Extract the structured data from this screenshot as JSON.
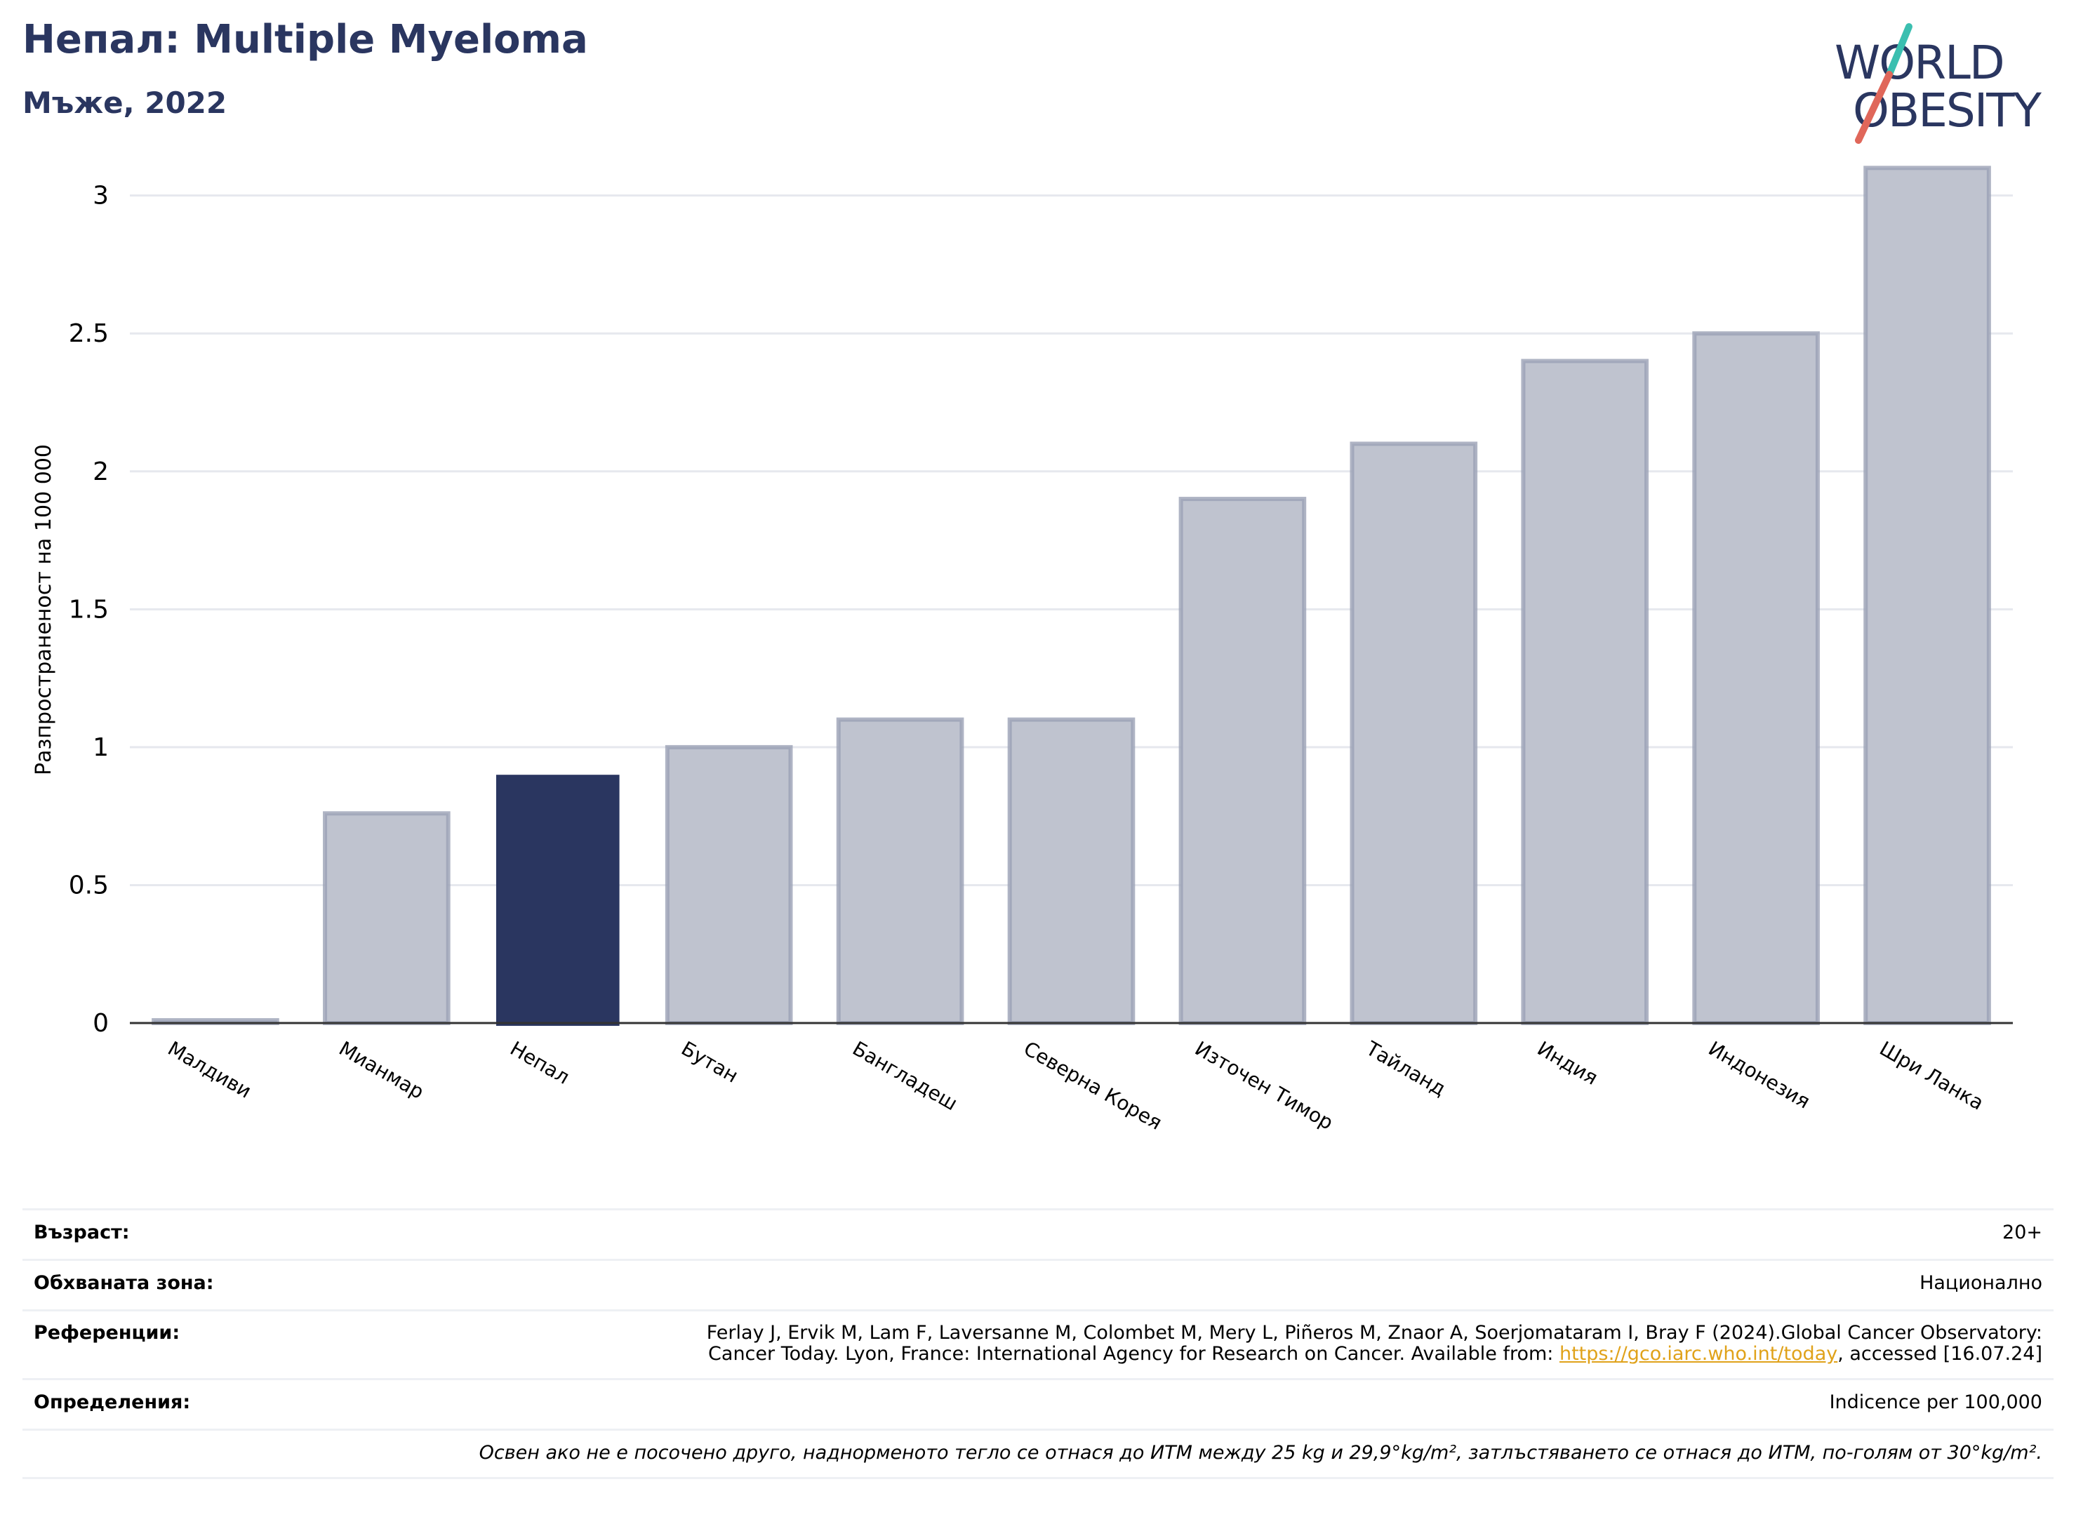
{
  "header": {
    "title": "Непал: Multiple Myeloma",
    "subtitle": "Мъже, 2022"
  },
  "logo": {
    "line1": "WORLD",
    "line2": "OBESITY",
    "colors": {
      "text": "#2a3660",
      "slash_teal": "#3bbfb0",
      "slash_red": "#e0675a"
    }
  },
  "chart_data": {
    "type": "bar",
    "ylabel": "Разпространеност  на 100 000",
    "xlabel": "",
    "ylim": [
      0,
      3.2
    ],
    "yticks": [
      0,
      0.5,
      1,
      1.5,
      2,
      2.5,
      3
    ],
    "ytick_labels": [
      "0",
      "0.5",
      "1",
      "1.5",
      "2",
      "2.5",
      "3"
    ],
    "categories": [
      "Малдиви",
      "Мианмар",
      "Непал",
      "Бутан",
      "Бангладеш",
      "Северна Корея",
      "Източен Тимор",
      "Тайланд",
      "Индия",
      "Индонезия",
      "Шри Ланка"
    ],
    "values": [
      0.01,
      0.76,
      0.9,
      1.0,
      1.1,
      1.1,
      1.9,
      2.1,
      2.4,
      2.5,
      3.1
    ],
    "highlight": "Непал",
    "colors": {
      "highlight": "#2a3660",
      "other": "#bfc3cf",
      "other_border": "#9ba1b5",
      "grid": "#e6e8ee",
      "axis": "#333333"
    },
    "grid": true
  },
  "meta": {
    "age_label": "Възраст:",
    "age_value": "20+",
    "area_label": "Обхваната зона:",
    "area_value": "Национално",
    "refs_label": "Референции:",
    "refs_line1": "Ferlay J, Ervik M, Lam F, Laversanne M, Colombet M, Mery L, Piñeros M, Znaor A, Soerjomataram I, Bray F (2024).Global Cancer Observatory:",
    "refs_line2_pre": "Cancer Today. Lyon, France: International Agency for Research on Cancer. Available from: ",
    "refs_link": "https://gco.iarc.who.int/today",
    "refs_line2_post": ", accessed [16.07.24]",
    "defs_label": "Определения:",
    "defs_value": "Indicence per 100,000",
    "note": "Освен ако не е посочено друго, наднорменото тегло се отнася до ИТМ между 25 kg и 29,9°kg/m², затлъстяването се отнася до ИТМ, по-голям от 30°kg/m²."
  }
}
